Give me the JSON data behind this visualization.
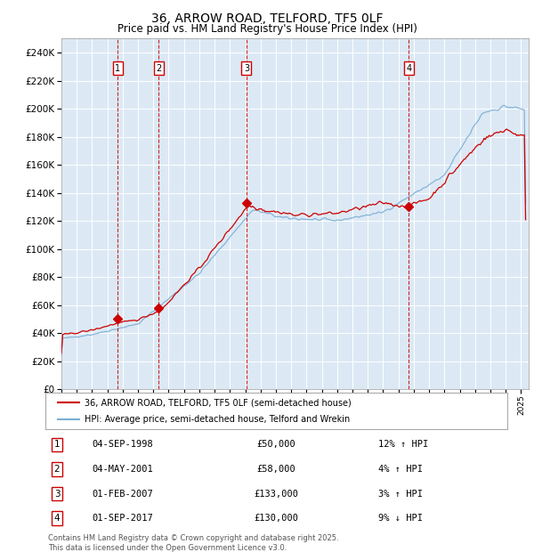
{
  "title": "36, ARROW ROAD, TELFORD, TF5 0LF",
  "subtitle": "Price paid vs. HM Land Registry's House Price Index (HPI)",
  "ylim": [
    0,
    250000
  ],
  "yticks": [
    0,
    20000,
    40000,
    60000,
    80000,
    100000,
    120000,
    140000,
    160000,
    180000,
    200000,
    220000,
    240000
  ],
  "xlim_start": 1995.0,
  "xlim_end": 2025.5,
  "background_color": "#ffffff",
  "plot_bg_color": "#dce9f5",
  "grid_color": "#ffffff",
  "sale_dates": [
    1998.67,
    2001.34,
    2007.08,
    2017.67
  ],
  "sale_prices": [
    50000,
    58000,
    133000,
    130000
  ],
  "sale_labels": [
    "1",
    "2",
    "3",
    "4"
  ],
  "sale_label_pct": [
    "12% ↑ HPI",
    "4% ↑ HPI",
    "3% ↑ HPI",
    "9% ↓ HPI"
  ],
  "sale_label_dates": [
    "04-SEP-1998",
    "04-MAY-2001",
    "01-FEB-2007",
    "01-SEP-2017"
  ],
  "sale_label_prices_str": [
    "£50,000",
    "£58,000",
    "£133,000",
    "£130,000"
  ],
  "hpi_line_color": "#7bafd4",
  "price_line_color": "#cc0000",
  "vline_color": "#cc0000",
  "annotation_box_color": "#cc0000",
  "footer_text": "Contains HM Land Registry data © Crown copyright and database right 2025.\nThis data is licensed under the Open Government Licence v3.0.",
  "legend_entry1": "36, ARROW ROAD, TELFORD, TF5 0LF (semi-detached house)",
  "legend_entry2": "HPI: Average price, semi-detached house, Telford and Wrekin"
}
